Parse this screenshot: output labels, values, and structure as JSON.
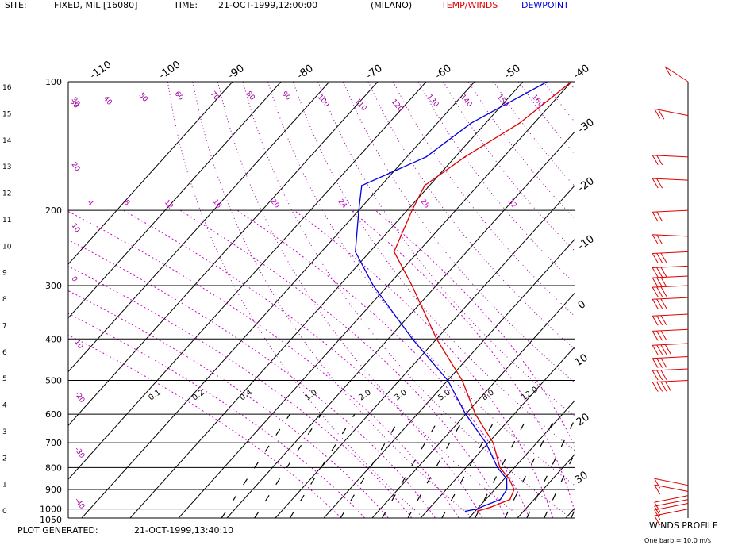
{
  "header": {
    "site_label": "SITE:",
    "site_value": "FIXED, MIL [16080]",
    "time_label": "TIME:",
    "time_value": "21-OCT-1999,12:00:00",
    "location": "(MILANO)",
    "legend_temp": "TEMP/WINDS",
    "legend_dew": "DEWPOINT"
  },
  "footer": {
    "generated_label": "PLOT GENERATED:",
    "generated_value": "21-OCT-1999,13:40:10",
    "winds_title": "WINDS PROFILE",
    "barb_note": "One barb = 10.0 m/s"
  },
  "colors": {
    "temperature": "#e00000",
    "dewpoint": "#0000e0",
    "wind": "#e00000",
    "dry_adiabat": "#a000a0",
    "moist_adiabat": "#d000d0",
    "mixing_ratio": "#000000",
    "isotherm": "#000000"
  },
  "chart_data": {
    "type": "line",
    "pressure_levels": [
      100,
      200,
      300,
      400,
      500,
      600,
      700,
      800,
      900,
      1000,
      1050
    ],
    "height_km_ticks": [
      "16",
      "15",
      "14",
      "13",
      "12",
      "11",
      "10",
      "9",
      "8",
      "7",
      "6",
      "5",
      "4",
      "3",
      "2",
      "1",
      "0"
    ],
    "isotherm_labels_top": [
      "-110",
      "-100",
      "-90",
      "-80",
      "-70",
      "-60",
      "-50",
      "-40"
    ],
    "isotherm_labels_right": [
      "-30",
      "-20",
      "-10",
      "0",
      "10",
      "20",
      "30"
    ],
    "mixing_ratio_labels": [
      "0.1",
      "0.2",
      "0.4",
      "1.0",
      "2.0",
      "3.0",
      "5.0",
      "8.0",
      "12.0"
    ],
    "dry_adiabat_labels": [
      "30",
      "40",
      "50",
      "60",
      "70",
      "80",
      "90",
      "100",
      "110",
      "120",
      "130",
      "140",
      "150",
      "160"
    ],
    "moist_adiabat_labels": [
      "4",
      "8",
      "12",
      "16",
      "20",
      "24",
      "28",
      "32"
    ],
    "left_edge_labels": [
      "30",
      "20",
      "10",
      "0",
      "-10",
      "-20",
      "-30",
      "-40"
    ],
    "series": [
      {
        "name": "TEMP/WINDS",
        "points": [
          {
            "p": 1012,
            "t": 10.5
          },
          {
            "p": 1000,
            "t": 11.5
          },
          {
            "p": 990,
            "t": 12.5
          },
          {
            "p": 950,
            "t": 15
          },
          {
            "p": 900,
            "t": 14
          },
          {
            "p": 850,
            "t": 11
          },
          {
            "p": 800,
            "t": 7
          },
          {
            "p": 700,
            "t": 1
          },
          {
            "p": 600,
            "t": -8
          },
          {
            "p": 500,
            "t": -17
          },
          {
            "p": 400,
            "t": -30
          },
          {
            "p": 300,
            "t": -45
          },
          {
            "p": 250,
            "t": -55
          },
          {
            "p": 200,
            "t": -59
          },
          {
            "p": 175,
            "t": -61
          },
          {
            "p": 150,
            "t": -58
          },
          {
            "p": 125,
            "t": -53
          },
          {
            "p": 100,
            "t": -50
          }
        ]
      },
      {
        "name": "DEWPOINT",
        "points": [
          {
            "p": 1012,
            "t": 8
          },
          {
            "p": 1000,
            "t": 10
          },
          {
            "p": 990,
            "t": 10.5
          },
          {
            "p": 950,
            "t": 13
          },
          {
            "p": 900,
            "t": 12.5
          },
          {
            "p": 850,
            "t": 10.5
          },
          {
            "p": 800,
            "t": 6.5
          },
          {
            "p": 700,
            "t": -0.5
          },
          {
            "p": 600,
            "t": -10
          },
          {
            "p": 500,
            "t": -20
          },
          {
            "p": 400,
            "t": -35
          },
          {
            "p": 300,
            "t": -53
          },
          {
            "p": 250,
            "t": -63
          },
          {
            "p": 200,
            "t": -70
          },
          {
            "p": 175,
            "t": -74
          },
          {
            "p": 150,
            "t": -66
          },
          {
            "p": 125,
            "t": -63
          },
          {
            "p": 100,
            "t": -55
          }
        ]
      }
    ],
    "winds": [
      {
        "p": 1000,
        "speed": 12,
        "dir": 250
      },
      {
        "p": 970,
        "speed": 12,
        "dir": 250
      },
      {
        "p": 950,
        "speed": 12,
        "dir": 250
      },
      {
        "p": 930,
        "speed": 12,
        "dir": 250
      },
      {
        "p": 910,
        "speed": 5,
        "dir": 290
      },
      {
        "p": 880,
        "speed": 5,
        "dir": 290
      },
      {
        "p": 500,
        "speed": 35,
        "dir": 265
      },
      {
        "p": 470,
        "speed": 30,
        "dir": 265
      },
      {
        "p": 440,
        "speed": 30,
        "dir": 265
      },
      {
        "p": 410,
        "speed": 35,
        "dir": 265
      },
      {
        "p": 380,
        "speed": 30,
        "dir": 265
      },
      {
        "p": 350,
        "speed": 30,
        "dir": 265
      },
      {
        "p": 320,
        "speed": 25,
        "dir": 265
      },
      {
        "p": 300,
        "speed": 25,
        "dir": 265
      },
      {
        "p": 285,
        "speed": 25,
        "dir": 265
      },
      {
        "p": 270,
        "speed": 25,
        "dir": 265
      },
      {
        "p": 250,
        "speed": 30,
        "dir": 265
      },
      {
        "p": 230,
        "speed": 20,
        "dir": 275
      },
      {
        "p": 200,
        "speed": 15,
        "dir": 265
      },
      {
        "p": 170,
        "speed": 20,
        "dir": 275
      },
      {
        "p": 150,
        "speed": 20,
        "dir": 275
      },
      {
        "p": 120,
        "speed": 20,
        "dir": 290
      },
      {
        "p": 100,
        "speed": 10,
        "dir": 320
      }
    ]
  }
}
